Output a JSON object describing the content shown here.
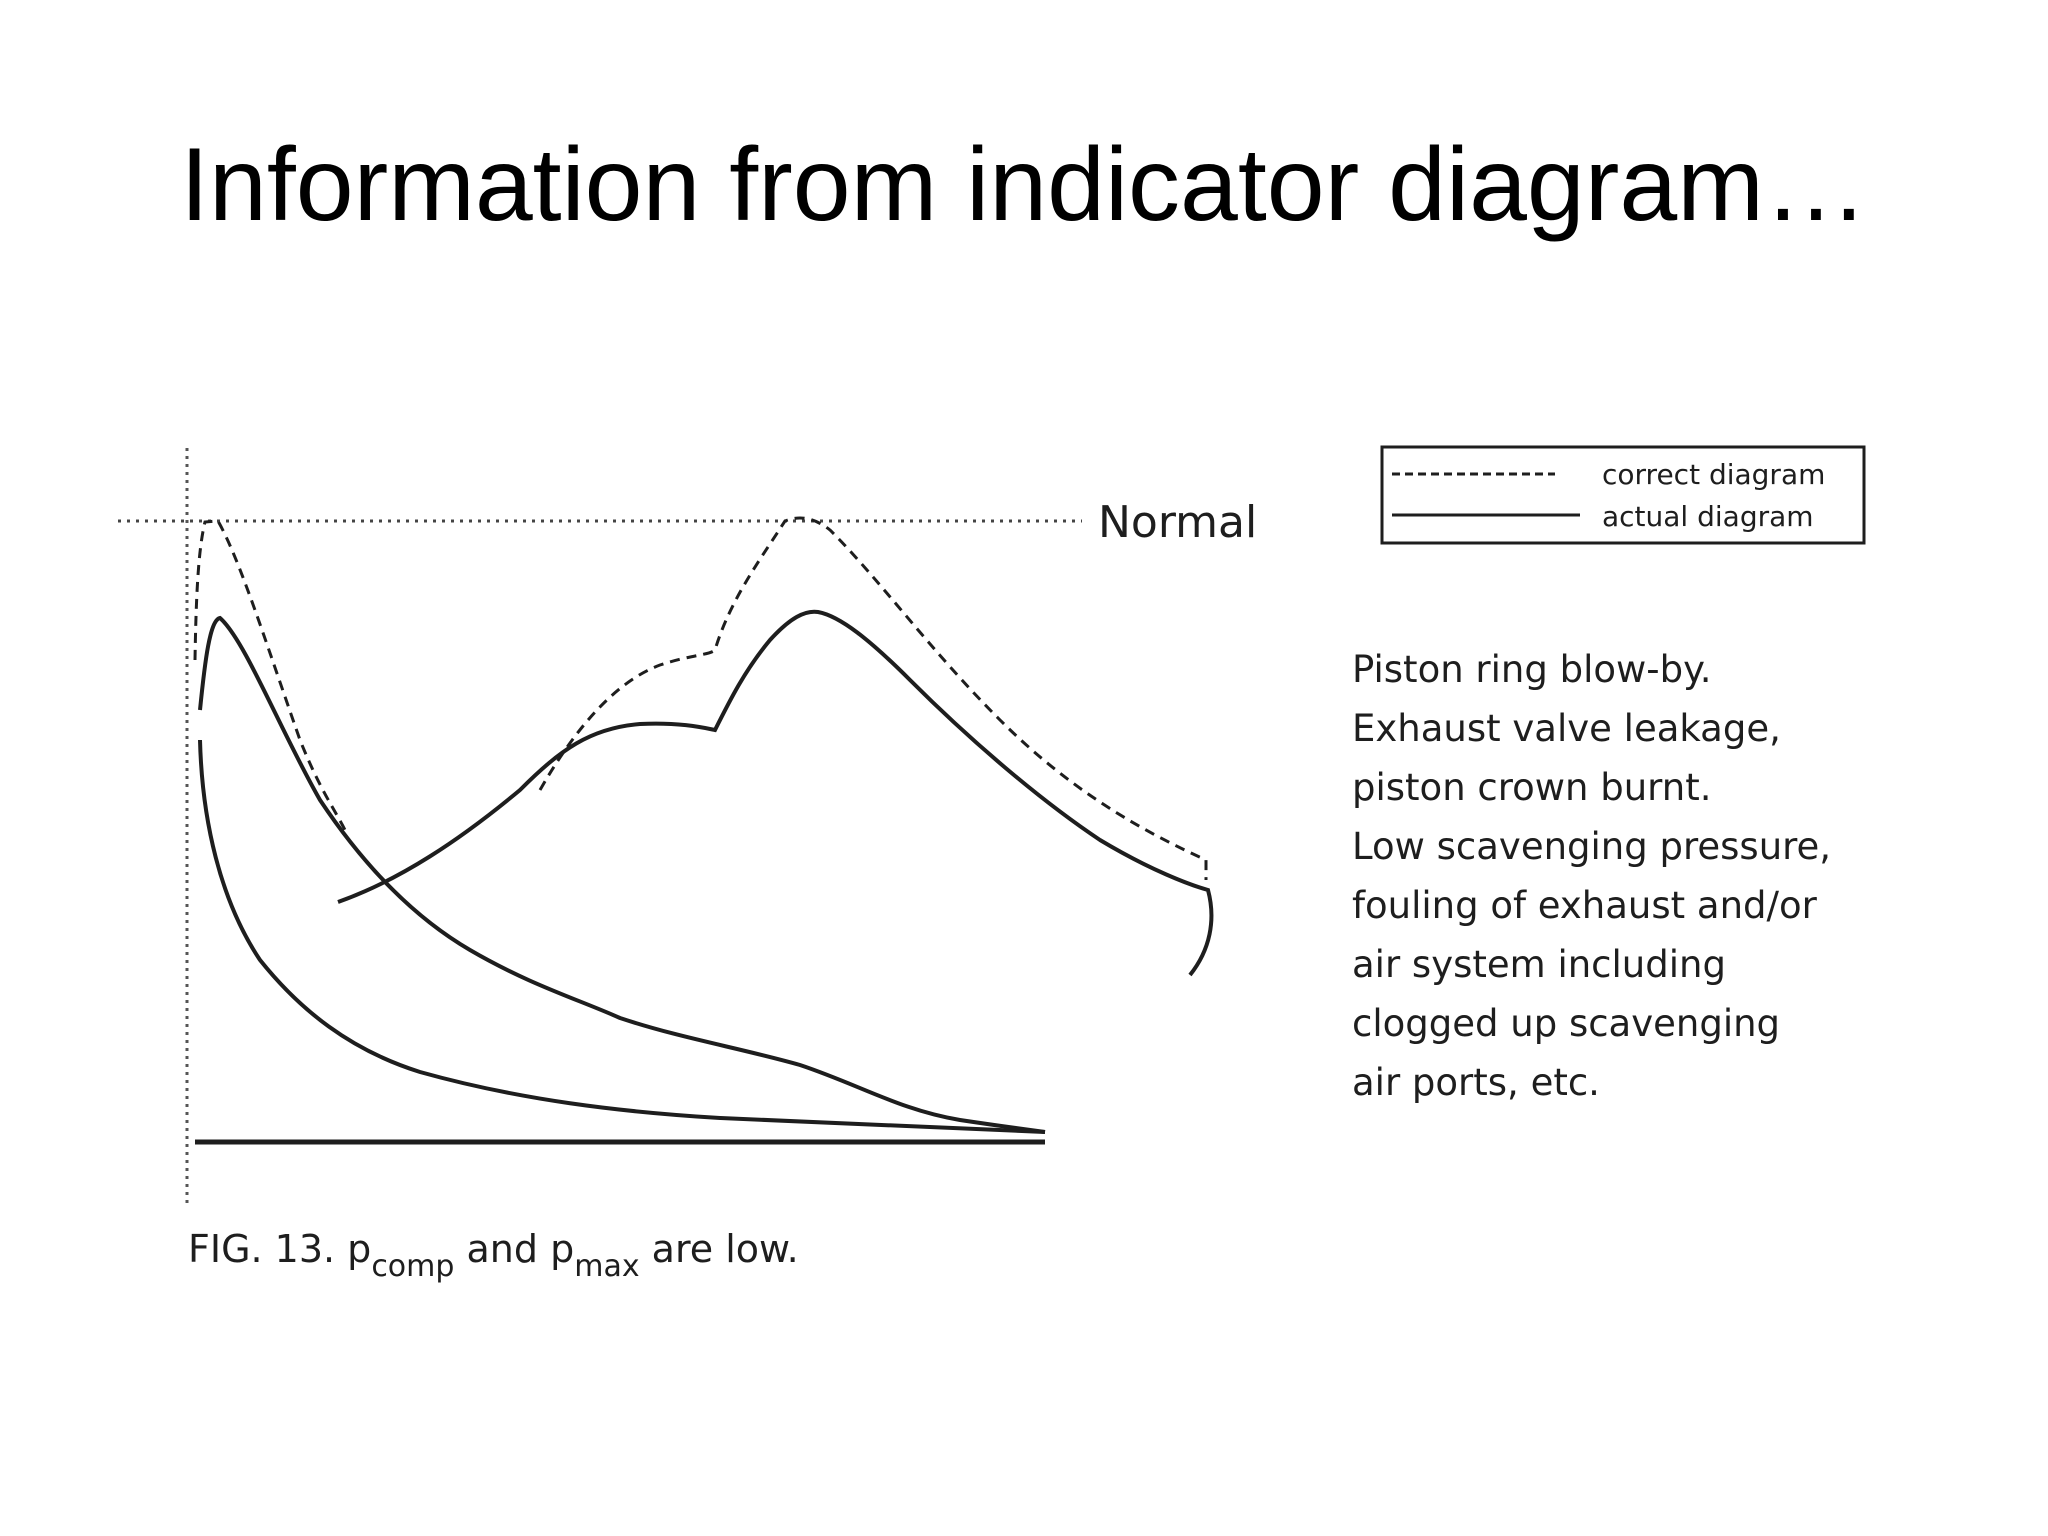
{
  "slide": {
    "title": "Information from indicator diagram…"
  },
  "figure": {
    "reference_label": "Normal",
    "legend": {
      "correct": "correct diagram",
      "actual": "actual diagram"
    },
    "description_lines": [
      "Piston ring blow-by.",
      "Exhaust valve leakage,",
      "piston crown burnt.",
      "Low scavenging pressure,",
      "fouling of exhaust and/or",
      "air system including",
      "clogged up scavenging",
      "air ports, etc."
    ],
    "caption": {
      "prefix": "FIG. 13. p",
      "sub1": "comp",
      "middle": " and p",
      "sub2": "max",
      "suffix": " are low."
    },
    "colors": {
      "ink": "#1e1e1e"
    }
  }
}
